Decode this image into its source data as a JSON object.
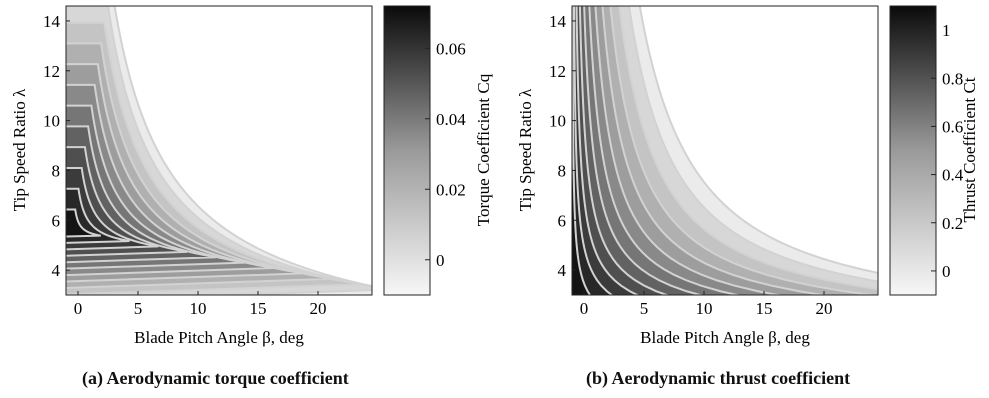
{
  "chart_data": [
    {
      "type": "contour",
      "xlabel": "Blade Pitch Angle β, deg",
      "ylabel": "Tip Speed Ratio λ",
      "colorbar_label": "Torque Coefficient Cq",
      "xticks": [
        0,
        5,
        10,
        15,
        20
      ],
      "yticks": [
        4,
        6,
        8,
        10,
        12,
        14
      ],
      "colorbar_ticks": [
        0,
        0.02,
        0.04,
        0.06
      ],
      "colorbar_tick_labels": [
        "0",
        "0.02",
        "0.04",
        "0.06"
      ],
      "xlim": [
        -1,
        24.5
      ],
      "ylim": [
        3,
        14.6
      ],
      "clim": [
        -0.01,
        0.072
      ],
      "peak": {
        "beta": 0,
        "lambda": 5.6,
        "value": 0.072
      },
      "colormap": "gray-reversed",
      "contour_line_color": "#d2d2d2",
      "caption": "(a) Aerodynamic torque coefficient"
    },
    {
      "type": "contour",
      "xlabel": "Blade Pitch Angle β, deg",
      "ylabel": "Tip Speed Ratio λ",
      "colorbar_label": "Thrust Coefficient Ct",
      "xticks": [
        0,
        5,
        10,
        15,
        20
      ],
      "yticks": [
        4,
        6,
        8,
        10,
        12,
        14
      ],
      "colorbar_ticks": [
        0,
        0.2,
        0.4,
        0.6,
        0.8,
        1
      ],
      "colorbar_tick_labels": [
        "0",
        "0.2",
        "0.4",
        "0.6",
        "0.8",
        "1"
      ],
      "xlim": [
        -1,
        24.5
      ],
      "ylim": [
        3,
        14.6
      ],
      "clim": [
        -0.1,
        1.1
      ],
      "peak": {
        "beta": -1,
        "lambda": 14.6,
        "value": 1.1
      },
      "colormap": "gray-reversed",
      "contour_line_color": "#d2d2d2",
      "caption": "(b) Aerodynamic thrust coefficient"
    }
  ]
}
